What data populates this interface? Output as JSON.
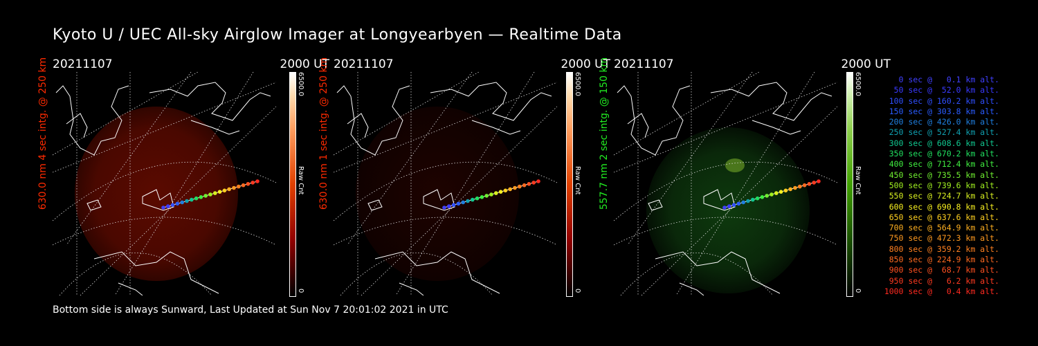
{
  "title": "Kyoto U / UEC All-sky Airglow Imager at Longyearbyen — Realtime Data",
  "footer": "Bottom side is always Sunward, Last Updated at Sun Nov  7 20:01:02 2021 in UTC",
  "panels": [
    {
      "date": "20211107",
      "time": "2000 UT",
      "ylabel": "630.0 nm 4 sec intg. @ 250 km",
      "cbar_max": "6500.0",
      "cbar_min": "0",
      "cbar_label": "Raw Cnt",
      "color": "red"
    },
    {
      "date": "20211107",
      "time": "2000 UT",
      "ylabel": "630.0 nm 1 sec intg. @ 250 km",
      "cbar_max": "6500.0",
      "cbar_min": "0",
      "cbar_label": "Raw Cnt",
      "color": "red"
    },
    {
      "date": "20211107",
      "time": "2000 UT",
      "ylabel": "557.7 nm 2 sec intg. @ 150 km",
      "cbar_max": "6500.0",
      "cbar_min": "0",
      "cbar_label": "Raw Cnt",
      "color": "green"
    }
  ],
  "legend": [
    {
      "text": "   0 sec @   0.1 km alt.",
      "color": "#4040ff"
    },
    {
      "text": "  50 sec @  52.0 km alt.",
      "color": "#3a3aff"
    },
    {
      "text": " 100 sec @ 160.2 km alt.",
      "color": "#2f4fff"
    },
    {
      "text": " 150 sec @ 303.8 km alt.",
      "color": "#2a5cff"
    },
    {
      "text": " 200 sec @ 426.0 km alt.",
      "color": "#1f7fe0"
    },
    {
      "text": " 250 sec @ 527.4 km alt.",
      "color": "#10a0b0"
    },
    {
      "text": " 300 sec @ 608.6 km alt.",
      "color": "#10c890"
    },
    {
      "text": " 350 sec @ 670.2 km alt.",
      "color": "#20e060"
    },
    {
      "text": " 400 sec @ 712.4 km alt.",
      "color": "#40f040"
    },
    {
      "text": " 450 sec @ 735.5 km alt.",
      "color": "#70f030"
    },
    {
      "text": " 500 sec @ 739.6 km alt.",
      "color": "#a0f020"
    },
    {
      "text": " 550 sec @ 724.7 km alt.",
      "color": "#d8f020"
    },
    {
      "text": " 600 sec @ 690.8 km alt.",
      "color": "#f8f020"
    },
    {
      "text": " 650 sec @ 637.6 km alt.",
      "color": "#ffd020"
    },
    {
      "text": " 700 sec @ 564.9 km alt.",
      "color": "#ffb020"
    },
    {
      "text": " 750 sec @ 472.3 km alt.",
      "color": "#ff9a20"
    },
    {
      "text": " 800 sec @ 359.2 km alt.",
      "color": "#ff8020"
    },
    {
      "text": " 850 sec @ 224.9 km alt.",
      "color": "#ff6a20"
    },
    {
      "text": " 900 sec @  68.7 km alt.",
      "color": "#ff5020"
    },
    {
      "text": " 950 sec @   6.2 km alt.",
      "color": "#ff3a20"
    },
    {
      "text": "1000 sec @   0.4 km alt.",
      "color": "#ff2a20"
    }
  ]
}
